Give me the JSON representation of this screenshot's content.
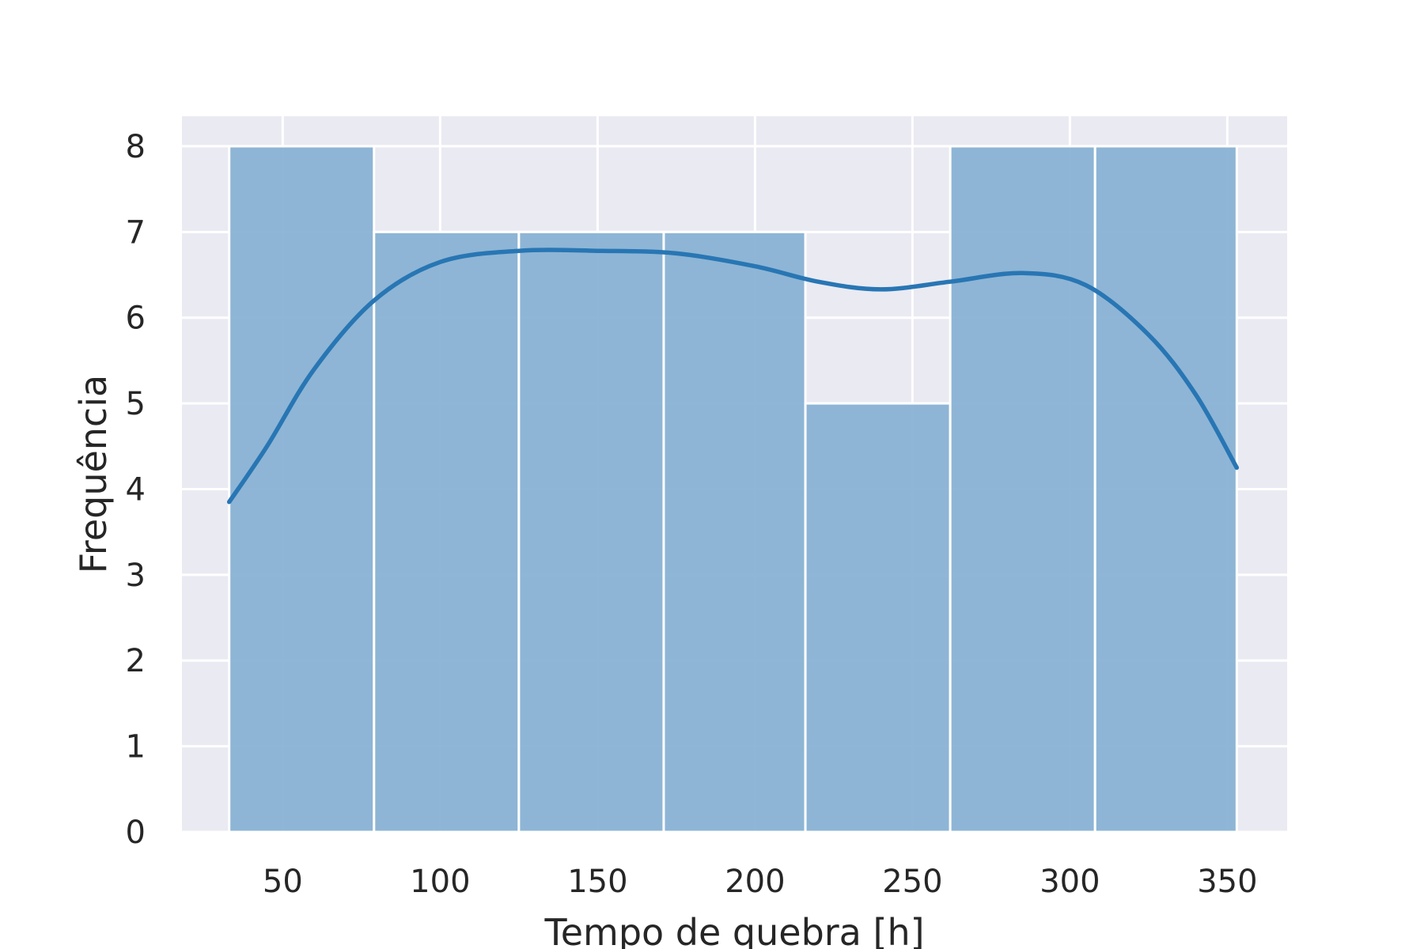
{
  "chart_data": {
    "type": "bar",
    "title": "",
    "xlabel": "Tempo de quebra [h]",
    "ylabel": "Frequência",
    "xlim": [
      18,
      369
    ],
    "ylim": [
      0,
      8.35
    ],
    "grid": true,
    "legend": "none",
    "x_ticks": [
      50,
      100,
      150,
      200,
      250,
      300,
      350
    ],
    "y_ticks": [
      0,
      1,
      2,
      3,
      4,
      5,
      6,
      7,
      8
    ],
    "bins": [
      {
        "start": 33,
        "end": 79,
        "count": 8
      },
      {
        "start": 79,
        "end": 125,
        "count": 7
      },
      {
        "start": 125,
        "end": 171,
        "count": 7
      },
      {
        "start": 171,
        "end": 216,
        "count": 7
      },
      {
        "start": 216,
        "end": 262,
        "count": 5
      },
      {
        "start": 262,
        "end": 308,
        "count": 8
      },
      {
        "start": 308,
        "end": 353,
        "count": 8
      }
    ],
    "kde": {
      "x": [
        33,
        45,
        60,
        79,
        100,
        125,
        150,
        175,
        200,
        220,
        240,
        262,
        285,
        305,
        325,
        340,
        353
      ],
      "y": [
        3.85,
        4.5,
        5.4,
        6.2,
        6.65,
        6.78,
        6.78,
        6.75,
        6.6,
        6.42,
        6.33,
        6.42,
        6.52,
        6.38,
        5.8,
        5.1,
        4.25
      ]
    },
    "colors": {
      "panel_background": "#eaeaf2",
      "grid": "#ffffff",
      "bar_fill": "#86b0d3",
      "bar_edge": "#ffffff",
      "kde_line": "#2876b4",
      "text": "#262626"
    }
  }
}
